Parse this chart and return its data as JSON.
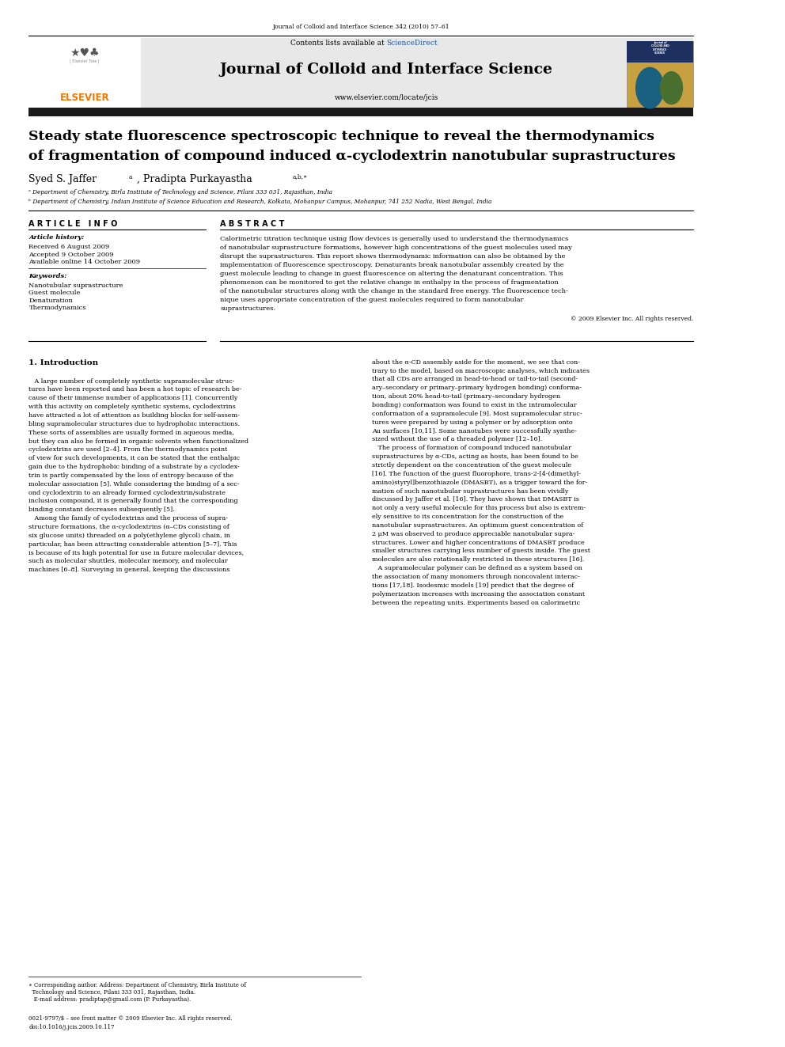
{
  "page_width": 9.92,
  "page_height": 13.23,
  "bg_color": "#ffffff",
  "journal_ref": "Journal of Colloid and Interface Science 342 (2010) 57–61",
  "sciencedirect_color": "#1a56a0",
  "journal_title": "Journal of Colloid and Interface Science",
  "journal_url": "www.elsevier.com/locate/jcis",
  "header_bg": "#e8e8e8",
  "dark_bar_color": "#1a1a1a",
  "elsevier_orange": "#f07800",
  "paper_title_line1": "Steady state fluorescence spectroscopic technique to reveal the thermodynamics",
  "paper_title_line2": "of fragmentation of compound induced α-cyclodextrin nanotubular suprastructures",
  "article_info_title": "A R T I C L E   I N F O",
  "abstract_title": "A B S T R A C T",
  "article_history_label": "Article history:",
  "received": "Received 6 August 2009",
  "accepted": "Accepted 9 October 2009",
  "available": "Available online 14 October 2009",
  "keywords_label": "Keywords:",
  "keyword1": "Nanotubular suprastructure",
  "keyword2": "Guest molecule",
  "keyword3": "Denaturation",
  "keyword4": "Thermodynamics",
  "copyright": "© 2009 Elsevier Inc. All rights reserved.",
  "intro_title": "1. Introduction",
  "footer_journal": "0021-9797/$ – see front matter © 2009 Elsevier Inc. All rights reserved.",
  "footer_doi": "doi:10.1016/j.jcis.2009.10.117",
  "abstract_lines": [
    "Calorimetric titration technique using flow devices is generally used to understand the thermodynamics",
    "of nanotubular suprastructure formations, however high concentrations of the guest molecules used may",
    "disrupt the suprastructures. This report shows thermodynamic information can also be obtained by the",
    "implementation of fluorescence spectroscopy. Denaturants break nanotubular assembly created by the",
    "guest molecule leading to change in guest fluorescence on altering the denaturant concentration. This",
    "phenomenon can be monitored to get the relative change in enthalpy in the process of fragmentation",
    "of the nanotubular structures along with the change in the standard free energy. The fluorescence tech-",
    "nique uses appropriate concentration of the guest molecules required to form nanotubular",
    "suprastructures."
  ],
  "col1_lines": [
    "   A large number of completely synthetic supramolecular struc-",
    "tures have been reported and has been a hot topic of research be-",
    "cause of their immense number of applications [1]. Concurrently",
    "with this activity on completely synthetic systems, cyclodextrins",
    "have attracted a lot of attention as building blocks for self-assem-",
    "bling supramolecular structures due to hydrophobic interactions.",
    "These sorts of assemblies are usually formed in aqueous media,",
    "but they can also be formed in organic solvents when functionalized",
    "cyclodextrins are used [2–4]. From the thermodynamics point",
    "of view for such developments, it can be stated that the enthalpic",
    "gain due to the hydrophobic binding of a substrate by a cyclodex-",
    "trin is partly compensated by the loss of entropy because of the",
    "molecular association [5]. While considering the binding of a sec-",
    "ond cyclodextrin to an already formed cyclodextrin/substrate",
    "inclusion compound, it is generally found that the corresponding",
    "binding constant decreases subsequently [5].",
    "   Among the family of cyclodextrins and the process of supra-",
    "structure formations, the α-cyclodextrins (α–CDs consisting of",
    "six glucose units) threaded on a poly(ethylene glycol) chain, in",
    "particular, has been attracting considerable attention [5–7]. This",
    "is because of its high potential for use in future molecular devices,",
    "such as molecular shuttles, molecular memory, and molecular",
    "machines [6–8]. Surveying in general, keeping the discussions"
  ],
  "col2_lines": [
    "about the α-CD assembly aside for the moment, we see that con-",
    "trary to the model, based on macroscopic analyses, which indicates",
    "that all CDs are arranged in head-to-head or tail-to-tail (second-",
    "ary–secondary or primary–primary hydrogen bonding) conforma-",
    "tion, about 20% head-to-tail (primary–secondary hydrogen",
    "bonding) conformation was found to exist in the intramolecular",
    "conformation of a supramolecule [9]. Most supramolecular struc-",
    "tures were prepared by using a polymer or by adsorption onto",
    "Au surfaces [10,11]. Some nanotubes were successfully synthe-",
    "sized without the use of a threaded polymer [12–16].",
    "   The process of formation of compound induced nanotubular",
    "suprastructures by α-CDs, acting as hosts, has been found to be",
    "strictly dependent on the concentration of the guest molecule",
    "[16]. The function of the guest fluorophore, trans-2-[4-(dimethyl-",
    "amino)styryl]benzothiazole (DMASBT), as a trigger toward the for-",
    "mation of such nanotubular suprastructures has been vividly",
    "discussed by Jaffer et al. [16]. They have shown that DMASBT is",
    "not only a very useful molecule for this process but also is extrem-",
    "ely sensitive to its concentration for the construction of the",
    "nanotubular suprastructures. An optimum guest concentration of",
    "2 μM was observed to produce appreciable nanotubular supra-",
    "structures. Lower and higher concentrations of DMASBT produce",
    "smaller structures carrying less number of guests inside. The guest",
    "molecules are also rotationally restricted in these structures [16].",
    "   A supramolecular polymer can be defined as a system based on",
    "the association of many monomers through noncovalent interac-",
    "tions [17,18]. Isodesmic models [19] predict that the degree of",
    "polymerization increases with increasing the association constant",
    "between the repeating units. Experiments based on calorimetric"
  ]
}
